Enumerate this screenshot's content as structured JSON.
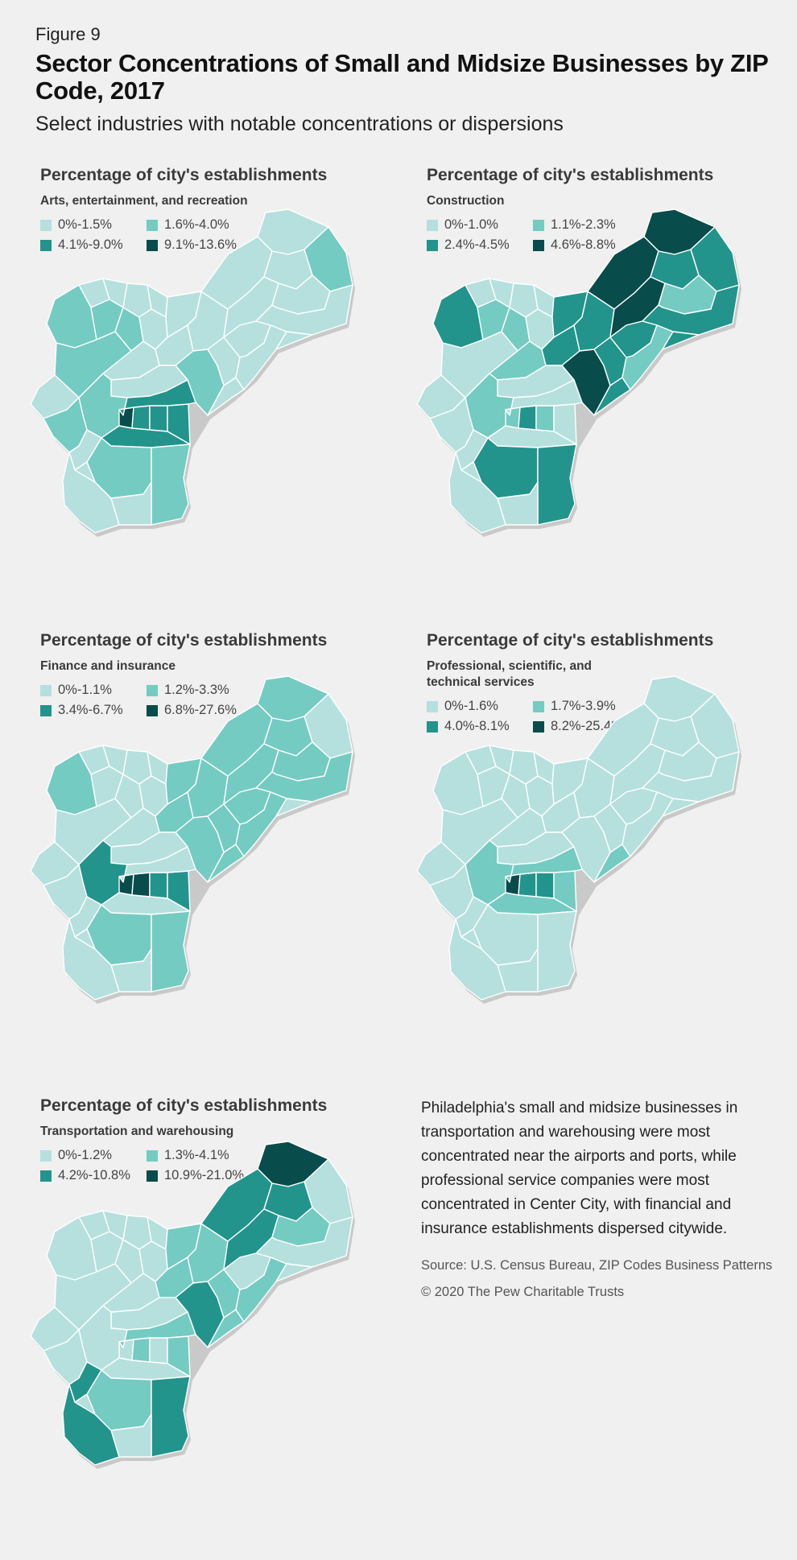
{
  "header": {
    "figure_label": "Figure 9",
    "title": "Sector Concentrations of Small and Midsize Businesses by ZIP Code, 2017",
    "subtitle": "Select industries with notable concentrations or dispersions"
  },
  "colors": {
    "c1": "#b5e0dd",
    "c2": "#74cbc2",
    "c3": "#22948c",
    "c4": "#084c4b",
    "outline": "#c9c9c9",
    "background": "#eff0ef"
  },
  "panels": [
    {
      "heading": "Percentage of city's establishments",
      "industry": "Arts, entertainment, and recreation",
      "legend": [
        "0%-1.5%",
        "1.6%-4.0%",
        "4.1%-9.0%",
        "9.1%-13.6%"
      ],
      "fills": {
        "nw1": 1,
        "nw2": 2,
        "nw3": 1,
        "nw4": 2,
        "nw5": 2,
        "nw6": 1,
        "nw7": 1,
        "nw8": 1,
        "w1": 2,
        "w2": 1,
        "n1": 1,
        "n2": 1,
        "n3": 1,
        "n4": 1,
        "n5": 2,
        "n6": 1,
        "n7": 1,
        "ne1": 1,
        "ne2": 1,
        "ne3": 2,
        "ne4": 1,
        "ne5": 1,
        "ne6": 1,
        "ne7": 1,
        "ne8": 1,
        "ne9": 1,
        "ne10": 1,
        "wp1": 1,
        "wp2": 2,
        "wp3": 2,
        "cc1": 4,
        "cc2": 3,
        "cc3": 3,
        "cc4": 3,
        "cc5": 3,
        "cc6": 3,
        "sp1": 2,
        "sp2": 2,
        "sp3": 1,
        "sw1": 1,
        "sw2": 1,
        "sw3": 1
      }
    },
    {
      "heading": "Percentage of city's establishments",
      "industry": "Construction",
      "legend": [
        "0%-1.0%",
        "1.1%-2.3%",
        "2.4%-4.5%",
        "4.6%-8.8%"
      ],
      "fills": {
        "nw1": 1,
        "nw2": 3,
        "nw3": 1,
        "nw4": 2,
        "nw5": 2,
        "nw6": 1,
        "nw7": 1,
        "nw8": 1,
        "w1": 1,
        "w2": 1,
        "n1": 2,
        "n2": 3,
        "n3": 3,
        "n4": 3,
        "n5": 4,
        "n6": 3,
        "n7": 3,
        "ne1": 4,
        "ne2": 4,
        "ne3": 3,
        "ne4": 3,
        "ne5": 4,
        "ne6": 2,
        "ne7": 3,
        "ne8": 3,
        "ne9": 2,
        "ne10": 3,
        "wp1": 1,
        "wp2": 2,
        "wp3": 1,
        "cc1": 2,
        "cc2": 3,
        "cc3": 2,
        "cc4": 1,
        "cc5": 1,
        "cc6": 1,
        "sp1": 3,
        "sp2": 3,
        "sp3": 1,
        "sw1": 1,
        "sw2": 1,
        "sw3": 1
      }
    },
    {
      "heading": "Percentage of city's establishments",
      "industry": "Finance and insurance",
      "legend": [
        "0%-1.1%",
        "1.2%-3.3%",
        "3.4%-6.7%",
        "6.8%-27.6%"
      ],
      "fills": {
        "nw1": 1,
        "nw2": 2,
        "nw3": 1,
        "nw4": 1,
        "nw5": 1,
        "nw6": 1,
        "nw7": 1,
        "nw8": 1,
        "w1": 1,
        "w2": 1,
        "n1": 1,
        "n2": 2,
        "n3": 2,
        "n4": 2,
        "n5": 2,
        "n6": 2,
        "n7": 2,
        "ne1": 2,
        "ne2": 2,
        "ne3": 1,
        "ne4": 2,
        "ne5": 2,
        "ne6": 2,
        "ne7": 2,
        "ne8": 2,
        "ne9": 2,
        "ne10": 1,
        "wp1": 1,
        "wp2": 3,
        "wp3": 1,
        "cc1": 4,
        "cc2": 4,
        "cc3": 3,
        "cc4": 3,
        "cc5": 1,
        "cc6": 1,
        "sp1": 2,
        "sp2": 2,
        "sp3": 1,
        "sw1": 1,
        "sw2": 1,
        "sw3": 1
      }
    },
    {
      "heading": "Percentage of city's establishments",
      "industry": "Professional, scientific, and technical services",
      "legend": [
        "0%-1.6%",
        "1.7%-3.9%",
        "4.0%-8.1%",
        "8.2%-25.4%"
      ],
      "fills": {
        "nw1": 1,
        "nw2": 1,
        "nw3": 1,
        "nw4": 1,
        "nw5": 1,
        "nw6": 1,
        "nw7": 1,
        "nw8": 1,
        "w1": 1,
        "w2": 1,
        "n1": 1,
        "n2": 1,
        "n3": 1,
        "n4": 1,
        "n5": 1,
        "n6": 1,
        "n7": 2,
        "ne1": 1,
        "ne2": 1,
        "ne3": 1,
        "ne4": 1,
        "ne5": 1,
        "ne6": 1,
        "ne7": 1,
        "ne8": 1,
        "ne9": 1,
        "ne10": 1,
        "wp1": 1,
        "wp2": 2,
        "wp3": 1,
        "cc1": 4,
        "cc2": 3,
        "cc3": 3,
        "cc4": 2,
        "cc5": 2,
        "cc6": 2,
        "sp1": 1,
        "sp2": 1,
        "sp3": 1,
        "sw1": 1,
        "sw2": 1,
        "sw3": 1
      }
    },
    {
      "heading": "Percentage of city's establishments",
      "industry": "Transportation and warehousing",
      "legend": [
        "0%-1.2%",
        "1.3%-4.1%",
        "4.2%-10.8%",
        "10.9%-21.0%"
      ],
      "fills": {
        "nw1": 1,
        "nw2": 1,
        "nw3": 1,
        "nw4": 1,
        "nw5": 1,
        "nw6": 1,
        "nw7": 1,
        "nw8": 1,
        "w1": 1,
        "w2": 1,
        "n1": 1,
        "n2": 2,
        "n3": 2,
        "n4": 2,
        "n5": 3,
        "n6": 2,
        "n7": 2,
        "ne1": 4,
        "ne2": 3,
        "ne3": 1,
        "ne4": 3,
        "ne5": 3,
        "ne6": 2,
        "ne7": 1,
        "ne8": 1,
        "ne9": 2,
        "ne10": 1,
        "wp1": 1,
        "wp2": 1,
        "wp3": 1,
        "cc1": 1,
        "cc2": 2,
        "cc3": 1,
        "cc4": 2,
        "cc5": 2,
        "cc6": 1,
        "sp1": 2,
        "sp2": 3,
        "sp3": 1,
        "sw1": 3,
        "sw2": 3,
        "sw3": 1
      }
    }
  ],
  "note": {
    "text": "Philadelphia's small and midsize businesses in transportation and warehousing were most concentrated near the airports and ports, while professional service companies were most concentrated in Center City, with financial and insurance establishments dispersed citywide.",
    "source": "Source: U.S. Census Bureau, ZIP Codes Business Patterns",
    "copyright": "© 2020 The Pew Charitable Trusts"
  }
}
